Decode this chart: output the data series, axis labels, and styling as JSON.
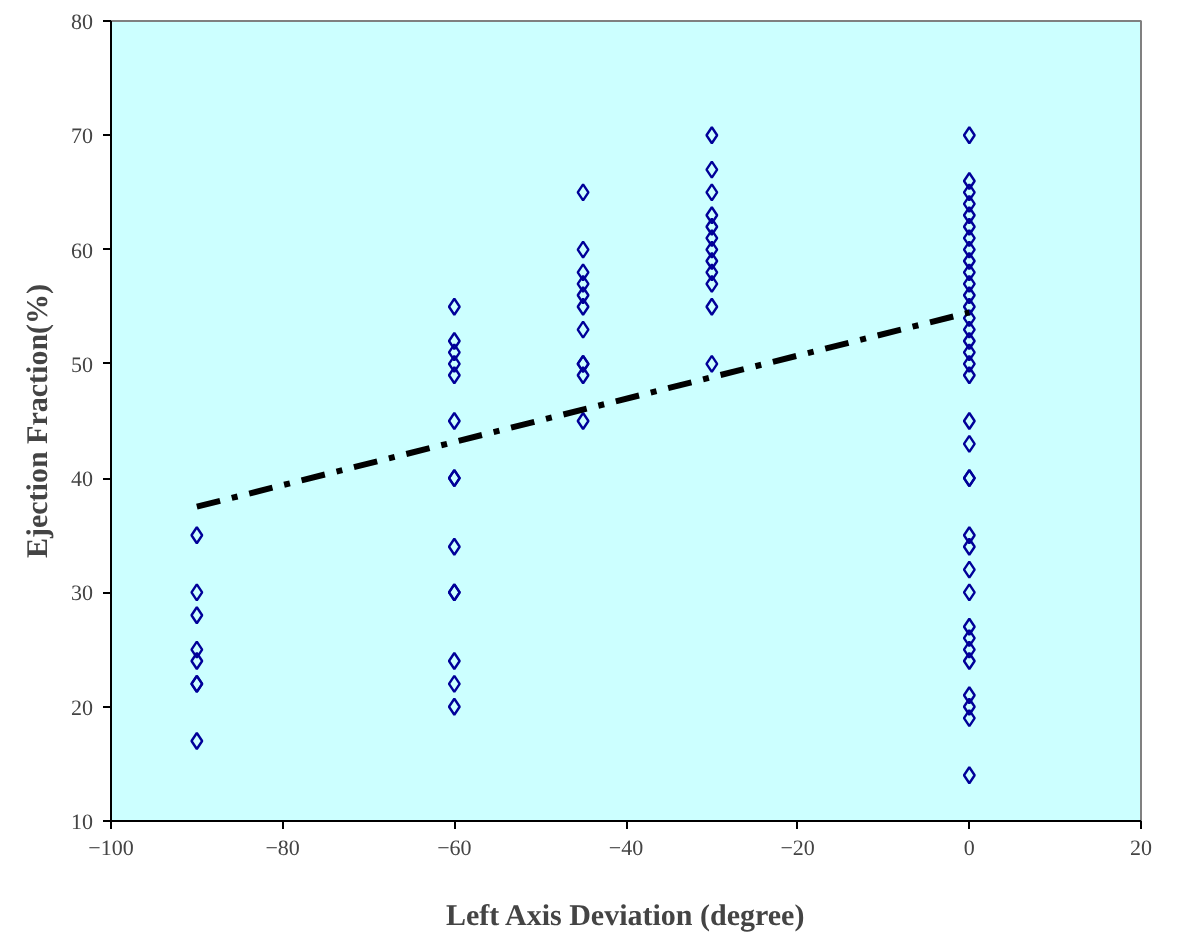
{
  "chart_data": {
    "type": "scatter",
    "xlabel": "Left Axis Deviation (degree)",
    "ylabel": "Ejection Fraction(%)",
    "xlim": [
      -100,
      20
    ],
    "xticks": [
      -100,
      -80,
      -60,
      -40,
      -20,
      0,
      20
    ],
    "ylim": [
      10,
      80
    ],
    "yticks": [
      10,
      20,
      30,
      40,
      50,
      60,
      70,
      80
    ],
    "grid": false,
    "marker": "diamond",
    "series": [
      {
        "color": "#000099",
        "x": [
          -90,
          -90,
          -90,
          -90,
          -90,
          -90,
          -90,
          -90,
          -60,
          -60,
          -60,
          -60,
          -60,
          -60,
          -60,
          -60,
          -60,
          -60,
          -60,
          -60,
          -60,
          -60,
          -45,
          -45,
          -45,
          -45,
          -45,
          -45,
          -45,
          -45,
          -45,
          -45,
          -45,
          -30,
          -30,
          -30,
          -30,
          -30,
          -30,
          -30,
          -30,
          -30,
          -30,
          -30,
          -30,
          0,
          0,
          0,
          0,
          0,
          0,
          0,
          0,
          0,
          0,
          0,
          0,
          0,
          0,
          0,
          0,
          0,
          0,
          0,
          0,
          0,
          0,
          0,
          0,
          0,
          0,
          0,
          0,
          0,
          0,
          0,
          0,
          0,
          0,
          0
        ],
        "values": [
          35,
          30,
          28,
          25,
          24,
          22,
          22,
          17,
          55,
          52,
          51,
          50,
          49,
          45,
          40,
          40,
          34,
          30,
          30,
          24,
          22,
          20,
          65,
          60,
          58,
          57,
          56,
          55,
          53,
          50,
          50,
          49,
          45,
          70,
          67,
          65,
          63,
          62,
          61,
          60,
          59,
          58,
          57,
          55,
          50,
          70,
          66,
          65,
          64,
          63,
          62,
          61,
          60,
          59,
          58,
          57,
          56,
          55,
          54,
          53,
          52,
          51,
          50,
          49,
          45,
          43,
          40,
          40,
          35,
          34,
          32,
          30,
          27,
          26,
          25,
          24,
          21,
          20,
          19,
          14
        ]
      },
      {
        "type": "line",
        "color": "#000000",
        "line_style": "dashed",
        "marker": "none",
        "x": [
          -90,
          0
        ],
        "values": [
          37.5,
          54.5
        ]
      }
    ]
  }
}
